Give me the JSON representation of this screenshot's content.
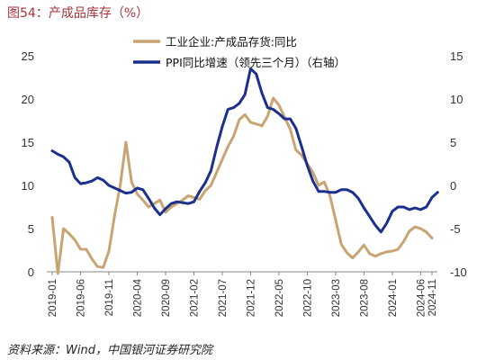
{
  "header": {
    "title": "图54：产成品库存（%）"
  },
  "footer": {
    "source": "资料来源：Wind，中国银河证券研究院"
  },
  "colors": {
    "inventory": "#c8a473",
    "ppi": "#1b2f8c",
    "axis": "#888888"
  },
  "chart_data": {
    "type": "line",
    "title": "",
    "legend": {
      "placement": "top-center"
    },
    "grid": false,
    "x_tick_labels": [
      "2019-01",
      "2019-06",
      "2019-11",
      "2020-04",
      "2020-09",
      "2021-02",
      "2021-07",
      "2021-12",
      "2022-05",
      "2022-10",
      "2023-03",
      "2023-08",
      "2024-01",
      "2024-06",
      "2024-11"
    ],
    "y_left": {
      "range": [
        0,
        25
      ],
      "ticks": [
        0,
        5,
        10,
        15,
        20,
        25
      ]
    },
    "y_right": {
      "range": [
        -10,
        15
      ],
      "ticks": [
        -10,
        -5,
        0,
        5,
        10,
        15
      ]
    },
    "series": [
      {
        "name": "工业企业:产成品存货:同比",
        "axis": "left",
        "values": [
          6.3,
          -0.2,
          5.0,
          4.4,
          3.7,
          2.6,
          2.6,
          1.5,
          0.6,
          0.5,
          2.4,
          6.5,
          10.0,
          15.0,
          10.4,
          9.0,
          8.3,
          7.5,
          7.9,
          8.3,
          6.9,
          7.5,
          7.9,
          8.3,
          8.8,
          8.6,
          8.4,
          9.4,
          10.0,
          11.5,
          13.0,
          14.5,
          15.7,
          17.6,
          18.2,
          17.3,
          17.1,
          16.9,
          18.0,
          20.1,
          19.3,
          17.9,
          16.5,
          14.1,
          13.5,
          12.5,
          11.5,
          10.0,
          10.4,
          8.8,
          6.0,
          3.2,
          2.2,
          1.6,
          2.3,
          3.1,
          2.1,
          1.8,
          2.1,
          2.3,
          2.4,
          2.6,
          3.5,
          4.7,
          5.2,
          5.0,
          4.6,
          3.9
        ]
      },
      {
        "name": "PPI同比增速（领先三个月）（右轴）",
        "axis": "right",
        "values": [
          4.0,
          3.6,
          3.3,
          2.7,
          0.9,
          0.2,
          0.3,
          0.5,
          0.9,
          0.6,
          0.0,
          -0.3,
          -0.6,
          -0.9,
          -0.8,
          -0.3,
          -0.5,
          -1.5,
          -2.6,
          -3.4,
          -2.7,
          -2.1,
          -1.9,
          -2.0,
          -2.1,
          -1.9,
          -0.7,
          0.3,
          1.7,
          4.4,
          6.8,
          8.8,
          9.0,
          9.5,
          10.5,
          13.5,
          12.9,
          10.7,
          9.0,
          8.8,
          8.3,
          7.7,
          7.7,
          6.6,
          4.5,
          2.3,
          0.5,
          -0.7,
          -0.7,
          -0.8,
          -0.8,
          -0.5,
          -0.5,
          -0.8,
          -1.5,
          -2.6,
          -3.6,
          -4.6,
          -5.4,
          -4.4,
          -3.0,
          -2.5,
          -2.5,
          -2.8,
          -2.6,
          -2.8,
          -2.5,
          -1.4,
          -0.8
        ]
      }
    ]
  }
}
